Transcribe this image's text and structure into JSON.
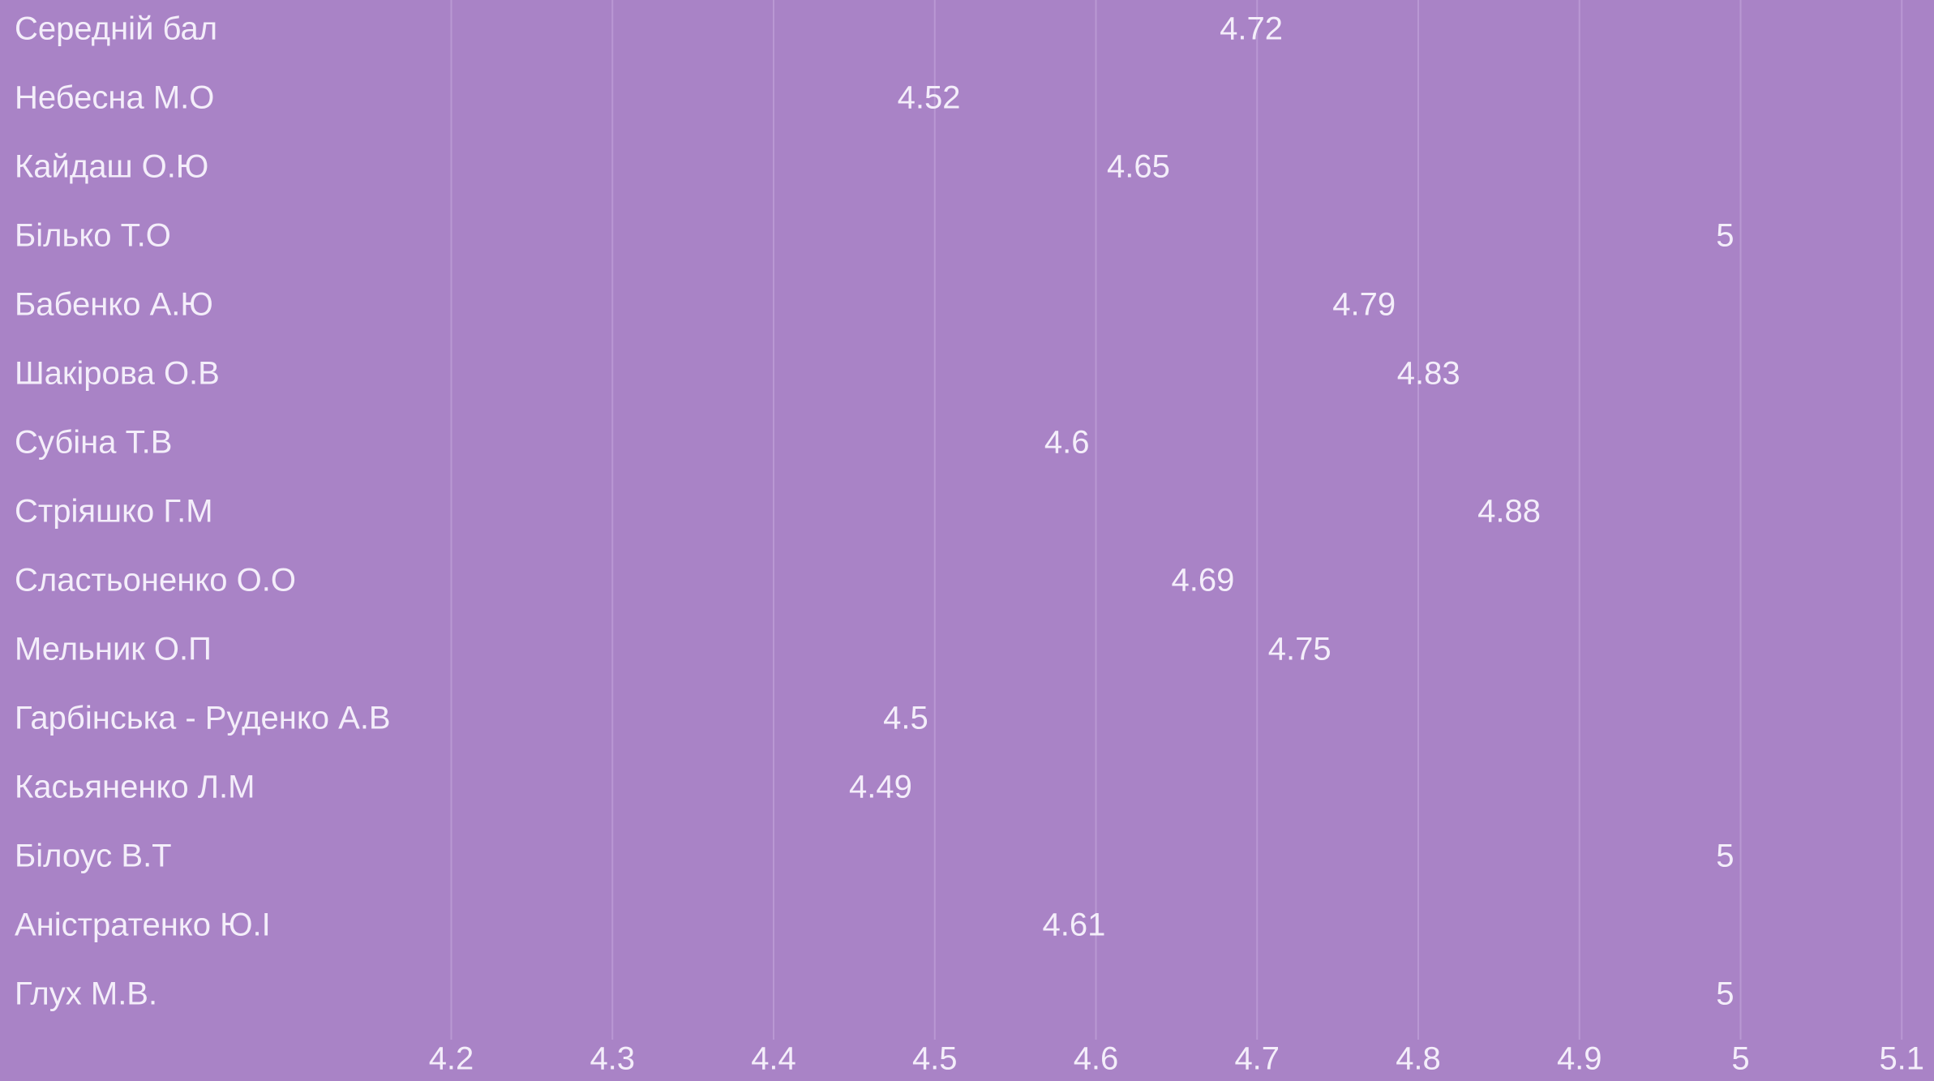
{
  "chart_data": {
    "type": "dot-label",
    "categories": [
      "Середній бал",
      "Небесна М.О",
      "Кайдаш О.Ю",
      "Білько Т.О",
      "Бабенко А.Ю",
      "Шакірова О.В",
      "Субіна Т.В",
      "Стріяшко Г.М",
      "Сластьоненко О.О",
      "Мельник О.П",
      "Гарбінська - Руденко А.В",
      "Касьяненко Л.М",
      "Білоус В.Т",
      "Аністратенко Ю.І",
      "Глух М.В."
    ],
    "values": [
      4.72,
      4.52,
      4.65,
      5,
      4.79,
      4.83,
      4.6,
      4.88,
      4.69,
      4.75,
      4.5,
      4.49,
      5,
      4.61,
      5
    ],
    "xlim": [
      3.92,
      5.12
    ],
    "xticks": [
      4.2,
      4.3,
      4.4,
      4.5,
      4.6,
      4.7,
      4.8,
      4.9,
      5,
      5.1
    ],
    "grid": true
  }
}
